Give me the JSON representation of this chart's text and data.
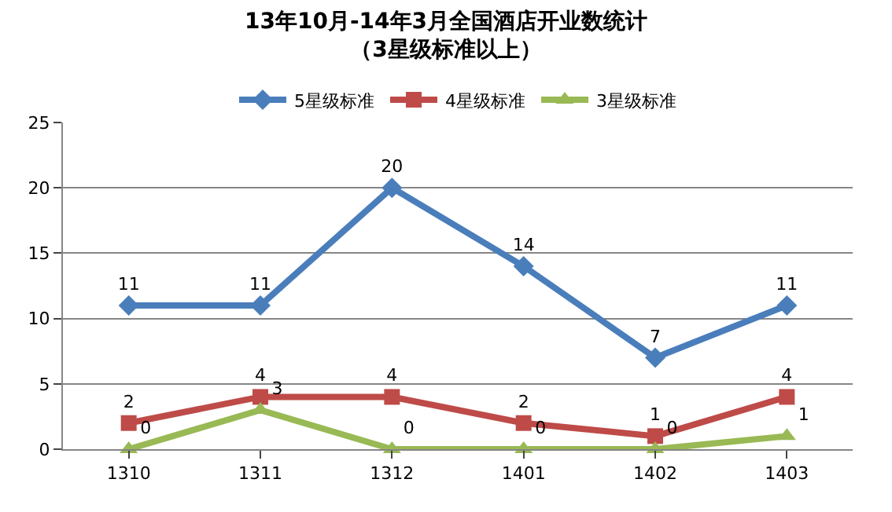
{
  "chart_data": {
    "type": "line",
    "title": "13年10月-14年3月全国酒店开业数统计",
    "subtitle": "（3星级标准以上）",
    "categories": [
      "1310",
      "1311",
      "1312",
      "1401",
      "1402",
      "1403"
    ],
    "series": [
      {
        "name": "5星级标准",
        "color": "#4a7ebb",
        "marker": "diamond",
        "values": [
          11,
          11,
          20,
          14,
          7,
          11
        ]
      },
      {
        "name": "4星级标准",
        "color": "#be4b48",
        "marker": "square",
        "values": [
          2,
          4,
          4,
          2,
          1,
          4
        ]
      },
      {
        "name": "3星级标准",
        "color": "#98b954",
        "marker": "triangle",
        "values": [
          0,
          3,
          0,
          0,
          0,
          1
        ]
      }
    ],
    "ylim": [
      0,
      25
    ],
    "yticks": [
      0,
      5,
      10,
      15,
      20,
      25
    ],
    "grid": "y",
    "legend": "top",
    "data_labels": true,
    "line_style": "solid"
  }
}
